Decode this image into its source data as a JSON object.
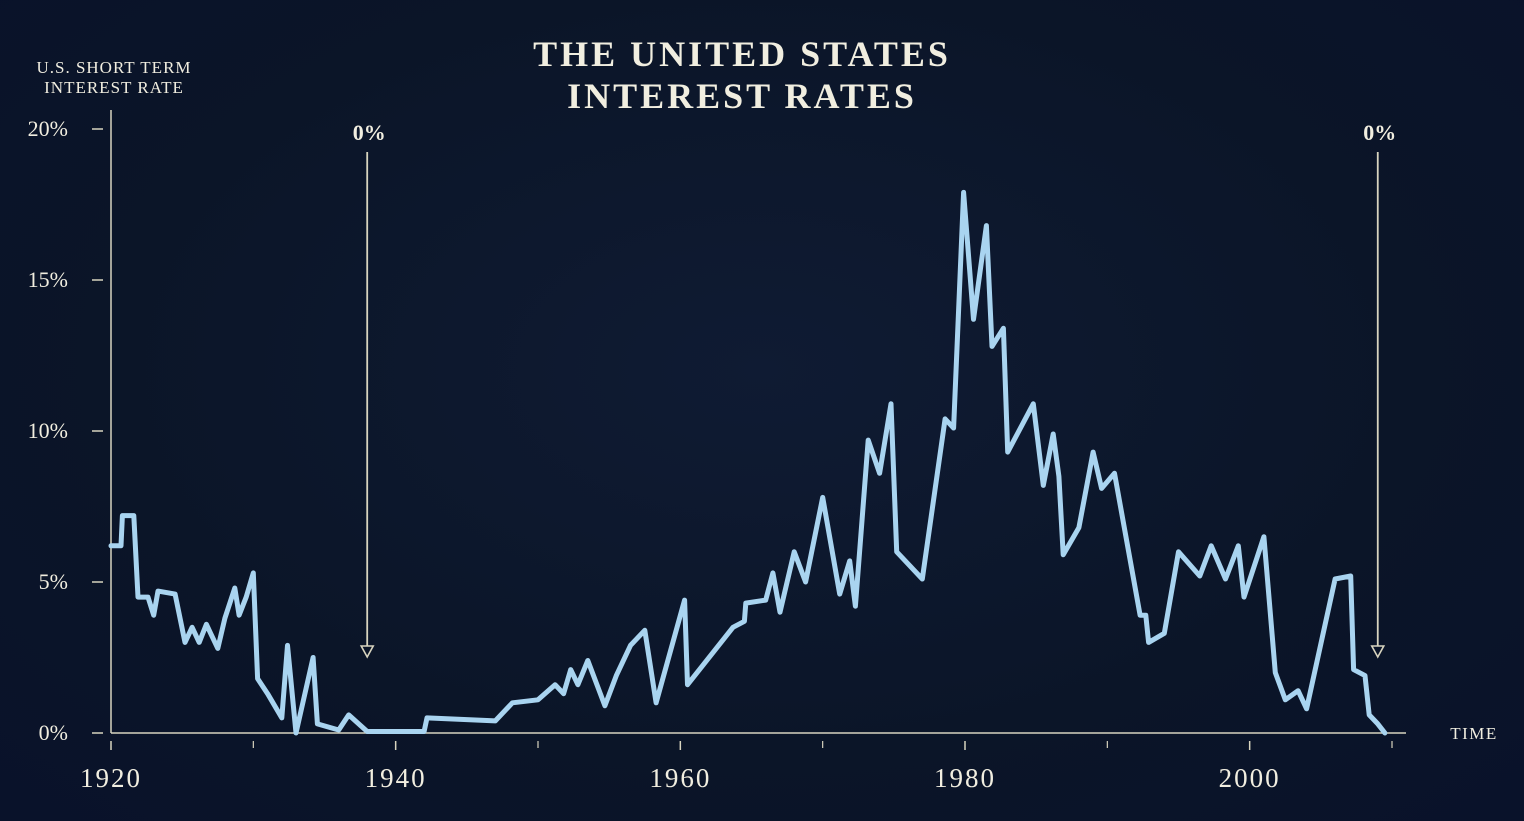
{
  "title_line1": "THE UNITED STATES",
  "title_line2": "INTEREST RATES",
  "ylabel_line1": "U.S. SHORT TERM",
  "ylabel_line2": "INTEREST RATE",
  "xlabel": "TIME",
  "annotations": [
    {
      "text": "0%",
      "year": 1938
    },
    {
      "text": "0%",
      "year": 2009
    }
  ],
  "colors": {
    "background": "#0b1528",
    "line": "#a9d4f0",
    "text": "#f1eee0",
    "axis": "#d8d4bf"
  },
  "chart_data": {
    "type": "line",
    "title": "THE UNITED STATES INTEREST RATES",
    "xlabel": "TIME",
    "ylabel": "U.S. SHORT TERM INTEREST RATE",
    "xlim": [
      1920,
      2010
    ],
    "ylim": [
      0,
      20
    ],
    "x_ticks": [
      1920,
      1940,
      1960,
      1980,
      2000
    ],
    "x_minor_ticks": [
      1930,
      1950,
      1970,
      1990,
      2010
    ],
    "y_ticks": [
      0,
      5,
      10,
      15,
      20
    ],
    "y_tick_labels": [
      "0%",
      "5%",
      "10%",
      "15%",
      "20%"
    ],
    "x_tick_labels": [
      "1920",
      "1940",
      "1960",
      "1980",
      "2000"
    ],
    "grid": false,
    "series": [
      {
        "x": [
          1920,
          1920.7,
          1920.8,
          1921.6,
          1921.9,
          1922.6,
          1923.0,
          1923.3,
          1924.5,
          1925.2,
          1925.7,
          1926.2,
          1926.7,
          1927.0,
          1927.5,
          1928.0,
          1928.7,
          1929.0,
          1929.5,
          1930.0,
          1930.3,
          1931.0,
          1932.0,
          1932.4,
          1933.0,
          1934.2,
          1934.5,
          1936.0,
          1936.7,
          1938.0,
          1940.0,
          1942.0,
          1942.2,
          1947.0,
          1948.2,
          1950.0,
          1951.2,
          1951.8,
          1952.3,
          1952.8,
          1953.5,
          1954.7,
          1955.5,
          1956.5,
          1957.5,
          1958.3,
          1960.3,
          1960.5,
          1963.7,
          1964.5,
          1964.6,
          1966.0,
          1966.5,
          1967.0,
          1968.0,
          1968.8,
          1970.0,
          1971.2,
          1971.9,
          1972.3,
          1973.2,
          1974.0,
          1974.8,
          1975.2,
          1977.0,
          1978.6,
          1979.2,
          1979.9,
          1980.6,
          1981.5,
          1981.9,
          1982.7,
          1983.0,
          1984.8,
          1985.5,
          1986.2,
          1986.6,
          1986.9,
          1988.0,
          1989.0,
          1989.6,
          1990.5,
          1992.3,
          1992.7,
          1992.9,
          1994.0,
          1995.0,
          1996.5,
          1997.3,
          1998.3,
          1999.2,
          1999.6,
          2001.0,
          2001.8,
          2002.5,
          2003.4,
          2004.0,
          2006.0,
          2007.1,
          2007.3,
          2008.1,
          2008.4,
          2009.0,
          2009.5
        ],
        "y": [
          6.2,
          6.2,
          7.2,
          7.2,
          4.5,
          4.5,
          3.9,
          4.7,
          4.6,
          3.0,
          3.5,
          3.0,
          3.6,
          3.3,
          2.8,
          3.8,
          4.8,
          3.9,
          4.5,
          5.3,
          1.8,
          1.3,
          0.5,
          2.9,
          0.0,
          2.5,
          0.3,
          0.1,
          0.6,
          0.05,
          0.05,
          0.05,
          0.5,
          0.4,
          1.0,
          1.1,
          1.6,
          1.3,
          2.1,
          1.6,
          2.4,
          0.9,
          1.9,
          2.9,
          3.4,
          1.0,
          4.4,
          1.6,
          3.5,
          3.7,
          4.3,
          4.4,
          5.3,
          4.0,
          6.0,
          5.0,
          7.8,
          4.6,
          5.7,
          4.2,
          9.7,
          8.6,
          10.9,
          6.0,
          5.1,
          10.4,
          10.1,
          17.9,
          13.7,
          16.8,
          12.8,
          13.4,
          9.3,
          10.9,
          8.2,
          9.9,
          8.5,
          5.9,
          6.8,
          9.3,
          8.1,
          8.6,
          3.9,
          3.9,
          3.0,
          3.3,
          6.0,
          5.2,
          6.2,
          5.1,
          6.2,
          4.5,
          6.5,
          2.0,
          1.1,
          1.4,
          0.8,
          5.1,
          5.2,
          2.1,
          1.9,
          0.6,
          0.3,
          0.0
        ]
      }
    ]
  }
}
